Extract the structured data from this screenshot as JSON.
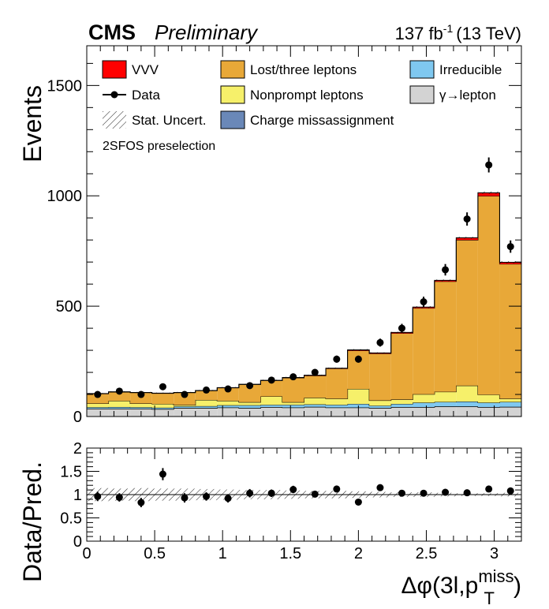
{
  "header": {
    "experiment": "CMS",
    "status": "Preliminary",
    "lumi": "137 fb",
    "lumi_exp": "-1",
    "energy": "(13 TeV)"
  },
  "region_label": "2SFOS preselection",
  "legend": [
    {
      "key": "vvv",
      "label": "VVV",
      "style": "box",
      "color": "#ff0000"
    },
    {
      "key": "lost",
      "label": "Lost/three leptons",
      "style": "box",
      "color": "#e8a838"
    },
    {
      "key": "irr",
      "label": "Irreducible",
      "style": "box",
      "color": "#7fc8f0"
    },
    {
      "key": "data",
      "label": "Data",
      "style": "marker",
      "color": "#000000"
    },
    {
      "key": "np",
      "label": "Nonprompt leptons",
      "style": "box",
      "color": "#f6f06a"
    },
    {
      "key": "gamma",
      "label": "γ→lepton",
      "style": "box",
      "color": "#d3d3d3"
    },
    {
      "key": "stat",
      "label": "Stat. Uncert.",
      "style": "hatch",
      "color": "#000000"
    },
    {
      "key": "charge",
      "label": "Charge missassignment",
      "style": "box",
      "color": "#6a88b8"
    }
  ],
  "chart_data": {
    "type": "bar",
    "stacked": true,
    "x_bin_edges": [
      0.0,
      0.16,
      0.32,
      0.48,
      0.64,
      0.8,
      0.96,
      1.12,
      1.28,
      1.44,
      1.6,
      1.76,
      1.92,
      2.08,
      2.24,
      2.4,
      2.56,
      2.72,
      2.88,
      3.04,
      3.2
    ],
    "xlabel": "Δφ(3l,p",
    "xlabel_sup": "miss",
    "xlabel_sub": "T",
    "xlabel_close": ")",
    "xlim": [
      0,
      3.2
    ],
    "upper": {
      "ylabel": "Events",
      "ylim": [
        0,
        1680
      ],
      "yticks": [
        0,
        500,
        1000,
        1500
      ],
      "series": [
        {
          "name": "γ→lepton",
          "color": "#d3d3d3",
          "values": [
            35,
            35,
            35,
            33,
            38,
            38,
            40,
            38,
            42,
            40,
            43,
            40,
            40,
            38,
            42,
            42,
            45,
            45,
            42,
            43
          ]
        },
        {
          "name": "Charge missassignment",
          "color": "#6a88b8",
          "values": [
            1,
            1,
            1,
            1,
            1,
            1,
            1,
            1,
            1,
            1,
            1,
            1,
            1,
            1,
            1,
            1,
            1,
            1,
            1,
            1
          ]
        },
        {
          "name": "Irreducible",
          "color": "#7fc8f0",
          "values": [
            6,
            7,
            6,
            6,
            7,
            8,
            10,
            12,
            10,
            12,
            11,
            12,
            16,
            10,
            14,
            20,
            20,
            22,
            20,
            22
          ]
        },
        {
          "name": "Nonprompt leptons",
          "color": "#f6f06a",
          "values": [
            17,
            28,
            17,
            17,
            6,
            28,
            20,
            14,
            38,
            12,
            30,
            28,
            68,
            24,
            20,
            38,
            46,
            72,
            36,
            15
          ]
        },
        {
          "name": "Lost/three leptons",
          "color": "#e8a838",
          "values": [
            44,
            40,
            49,
            48,
            56,
            42,
            59,
            80,
            72,
            110,
            100,
            136,
            174,
            212,
            300,
            390,
            500,
            660,
            900,
            610
          ]
        },
        {
          "name": "VVV",
          "color": "#ff0000",
          "values": [
            1,
            1,
            1,
            1,
            1,
            1,
            1,
            1,
            1,
            2,
            2,
            2,
            3,
            3,
            4,
            5,
            5,
            10,
            15,
            8
          ]
        }
      ],
      "data": {
        "name": "Data",
        "values": [
          100,
          115,
          100,
          135,
          100,
          120,
          125,
          140,
          165,
          180,
          200,
          260,
          260,
          335,
          400,
          520,
          665,
          895,
          1140,
          770
        ],
        "errors": [
          10,
          11,
          10,
          12,
          10,
          11,
          11,
          12,
          13,
          14,
          14,
          16,
          16,
          18,
          20,
          23,
          26,
          30,
          34,
          28
        ]
      }
    },
    "ratio": {
      "ylabel": "Data/Pred.",
      "ylim": [
        0,
        2
      ],
      "yticks": [
        "0",
        "0.5",
        "1",
        "1.5",
        "2"
      ],
      "ytick_values": [
        0,
        0.5,
        1,
        1.5,
        2
      ],
      "values": [
        0.96,
        0.94,
        0.83,
        1.44,
        0.93,
        0.96,
        0.92,
        1.03,
        1.03,
        1.11,
        1.01,
        1.12,
        0.84,
        1.15,
        1.03,
        1.03,
        1.05,
        1.04,
        1.12,
        1.08
      ],
      "errors": [
        0.1,
        0.09,
        0.1,
        0.13,
        0.1,
        0.09,
        0.09,
        0.09,
        0.08,
        0.08,
        0.07,
        0.07,
        0.06,
        0.06,
        0.05,
        0.05,
        0.04,
        0.04,
        0.04,
        0.04
      ],
      "stat_uncert": [
        0.14,
        0.13,
        0.14,
        0.13,
        0.13,
        0.12,
        0.11,
        0.1,
        0.1,
        0.09,
        0.08,
        0.08,
        0.07,
        0.06,
        0.05,
        0.05,
        0.04,
        0.03,
        0.03,
        0.04
      ]
    },
    "xticks": [
      "0",
      "0.5",
      "1",
      "1.5",
      "2",
      "2.5",
      "3"
    ],
    "xtick_values": [
      0,
      0.5,
      1,
      1.5,
      2,
      2.5,
      3
    ]
  }
}
